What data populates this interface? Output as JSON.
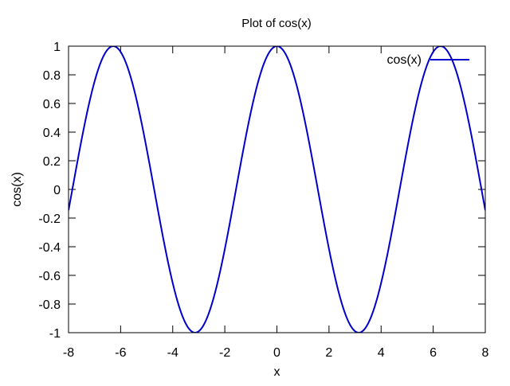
{
  "chart_data": {
    "type": "line",
    "title": "Plot of cos(x)",
    "xlabel": "x",
    "ylabel": "cos(x)",
    "xlim": [
      -8,
      8
    ],
    "ylim": [
      -1,
      1
    ],
    "x_ticks": [
      -8,
      -6,
      -4,
      -2,
      0,
      2,
      4,
      6,
      8
    ],
    "y_ticks": [
      -1,
      -0.8,
      -0.6,
      -0.4,
      -0.2,
      0,
      0.2,
      0.4,
      0.6,
      0.8,
      1
    ],
    "x_tick_labels": [
      "-8",
      "-6",
      "-4",
      "-2",
      "0",
      "2",
      "4",
      "6",
      "8"
    ],
    "y_tick_labels": [
      "-1",
      "-0.8",
      "-0.6",
      "-0.4",
      "-0.2",
      "0",
      "0.2",
      "0.4",
      "0.6",
      "0.8",
      "1"
    ],
    "grid": false,
    "legend": {
      "placement": "top-right"
    },
    "series": [
      {
        "name": "cos(x)",
        "color": "#0000cc",
        "function": "cos(x)",
        "x_domain": [
          -8,
          8
        ],
        "x": [
          -8,
          -7,
          -6.283,
          -6,
          -5,
          -4,
          -3.142,
          -3,
          -2,
          -1,
          0,
          1,
          2,
          3,
          3.142,
          4,
          5,
          6,
          6.283,
          7,
          8
        ],
        "y": [
          -0.1455,
          0.7539,
          1,
          0.9602,
          0.2837,
          -0.6536,
          -1,
          -0.99,
          -0.4161,
          0.5403,
          1,
          0.5403,
          -0.4161,
          -0.99,
          -1,
          -0.6536,
          0.2837,
          0.9602,
          1,
          0.7539,
          -0.1455
        ]
      }
    ]
  }
}
